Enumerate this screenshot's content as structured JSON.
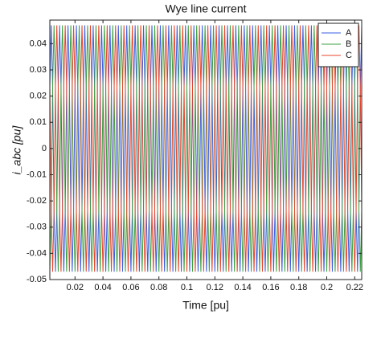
{
  "chart_data": {
    "type": "line",
    "title": "Wye line current",
    "xlabel": "Time [pu]",
    "ylabel": "i_abc [pu]",
    "xlim": [
      0.002,
      0.225
    ],
    "ylim": [
      -0.05,
      0.049
    ],
    "xticks": [
      0.02,
      0.04,
      0.06,
      0.08,
      0.1,
      0.12,
      0.14,
      0.16,
      0.18,
      0.2,
      0.22
    ],
    "yticks": [
      -0.05,
      -0.04,
      -0.03,
      -0.02,
      -0.01,
      0,
      0.01,
      0.02,
      0.03,
      0.04
    ],
    "legend": "upper right",
    "grid": false,
    "x": [
      0.002,
      0.003,
      0.004,
      0.005,
      0.006,
      0.007,
      0.008,
      0.009,
      0.01,
      0.011,
      0.012,
      0.013,
      0.014,
      0.015,
      0.016,
      0.017,
      0.018,
      0.019,
      0.02,
      0.021,
      0.022,
      0.023,
      0.024,
      0.025,
      0.026,
      0.027,
      0.028,
      0.029,
      0.03,
      0.031,
      0.032,
      0.033,
      0.034,
      0.035,
      0.036,
      0.037,
      0.038,
      0.039,
      0.04,
      0.041,
      0.042,
      0.043,
      0.044,
      0.045,
      0.046,
      0.047,
      0.048,
      0.049,
      0.05,
      0.051,
      0.052,
      0.053,
      0.054,
      0.055,
      0.056,
      0.057,
      0.058,
      0.059,
      0.06,
      0.061,
      0.062,
      0.063,
      0.064,
      0.065,
      0.066,
      0.067,
      0.068,
      0.069,
      0.07,
      0.071,
      0.072,
      0.073,
      0.074,
      0.075,
      0.076,
      0.077,
      0.078,
      0.079,
      0.08,
      0.081,
      0.082,
      0.083,
      0.084,
      0.085,
      0.086,
      0.087,
      0.088,
      0.089,
      0.09,
      0.091,
      0.092,
      0.093,
      0.094,
      0.095,
      0.096,
      0.097,
      0.098,
      0.099,
      0.1,
      0.101,
      0.102,
      0.103,
      0.104,
      0.105,
      0.106,
      0.107,
      0.108,
      0.109,
      0.11,
      0.111,
      0.112,
      0.113,
      0.114,
      0.115,
      0.116,
      0.117,
      0.118,
      0.119,
      0.12,
      0.121,
      0.122,
      0.123,
      0.124,
      0.125,
      0.126,
      0.127,
      0.128,
      0.129,
      0.13,
      0.131,
      0.132,
      0.133,
      0.134,
      0.135,
      0.136,
      0.137,
      0.138,
      0.139,
      0.14,
      0.141,
      0.142,
      0.143,
      0.144,
      0.145,
      0.146,
      0.147,
      0.148,
      0.149,
      0.15,
      0.151,
      0.152,
      0.153,
      0.154,
      0.155,
      0.156,
      0.157,
      0.158,
      0.159,
      0.16,
      0.161,
      0.162,
      0.163,
      0.164,
      0.165,
      0.166,
      0.167,
      0.168,
      0.169,
      0.17,
      0.171,
      0.172,
      0.173,
      0.174,
      0.175,
      0.176,
      0.177,
      0.178,
      0.179,
      0.18,
      0.181,
      0.182,
      0.183,
      0.184,
      0.185,
      0.186,
      0.187,
      0.188,
      0.189,
      0.19,
      0.191,
      0.192,
      0.193,
      0.194,
      0.195,
      0.196,
      0.197,
      0.198,
      0.199,
      0.2,
      0.201,
      0.202,
      0.203,
      0.204,
      0.205,
      0.206,
      0.207,
      0.208,
      0.209,
      0.21,
      0.211,
      0.212,
      0.213,
      0.214,
      0.215,
      0.216,
      0.217,
      0.218,
      0.219,
      0.22,
      0.221,
      0.222,
      0.223,
      0.224,
      0.225
    ],
    "series": [
      {
        "name": "A",
        "color": "#3a5fe0",
        "values": [
          0.0235,
          0.047,
          0.0235,
          -0.0235,
          -0.047,
          -0.0235,
          0.0235,
          0.047,
          0.0235,
          -0.0235,
          -0.047,
          -0.0235,
          0.0235,
          0.047,
          0.0235,
          -0.0235,
          -0.047,
          -0.0235,
          0.0235,
          0.047,
          0.0235,
          -0.0235,
          -0.047,
          -0.0235,
          0.0235,
          0.047,
          0.0235,
          -0.0235,
          -0.047,
          -0.0235,
          0.0235,
          0.047,
          0.0235,
          -0.0235,
          -0.047,
          -0.0235,
          0.0235,
          0.047,
          0.0235,
          -0.0235,
          -0.047,
          -0.0235,
          0.0235,
          0.047,
          0.0235,
          -0.0235,
          -0.047,
          -0.0235,
          0.0235,
          0.047,
          0.0235,
          -0.0235,
          -0.047,
          -0.0235,
          0.0235,
          0.047,
          0.0235,
          -0.0235,
          -0.047,
          -0.0235,
          0.0235,
          0.047,
          0.0235,
          -0.0235,
          -0.047,
          -0.0235,
          0.0235,
          0.047,
          0.0235,
          -0.0235,
          -0.047,
          -0.0235,
          0.0235,
          0.047,
          0.0235,
          -0.0235,
          -0.047,
          -0.0235,
          0.0235,
          0.047,
          0.0235,
          -0.0235,
          -0.047,
          -0.0235,
          0.0235,
          0.047,
          0.0235,
          -0.0235,
          -0.047,
          -0.0235,
          0.0235,
          0.047,
          0.0235,
          -0.0235,
          -0.047,
          -0.0235,
          0.0235,
          0.047,
          0.0235,
          -0.0235,
          -0.047,
          -0.0235,
          0.0235,
          0.047,
          0.0235,
          -0.0235,
          -0.047,
          -0.0235,
          0.0235,
          0.047,
          0.0235,
          -0.0235,
          -0.047,
          -0.0235,
          0.0235,
          0.047,
          0.0235,
          -0.0235,
          -0.047,
          -0.0235,
          0.0235,
          0.047,
          0.0235,
          -0.0235,
          -0.047,
          -0.0235,
          0.0235,
          0.047,
          0.0235,
          -0.0235,
          -0.047,
          -0.0235,
          0.0235,
          0.047,
          0.0235,
          -0.0235,
          -0.047,
          -0.0235,
          0.0235,
          0.047,
          0.0235,
          -0.0235,
          -0.047,
          -0.0235,
          0.0235,
          0.047,
          0.0235,
          -0.0235,
          -0.047,
          -0.0235,
          0.0235,
          0.047,
          0.0235,
          -0.0235,
          -0.047,
          -0.0235,
          0.0235,
          0.047,
          0.0235,
          -0.0235,
          -0.047,
          -0.0235,
          0.0235,
          0.047,
          0.0235,
          -0.0235,
          -0.047,
          -0.0235,
          0.0235,
          0.047,
          0.0235,
          -0.0235,
          -0.047,
          -0.0235,
          0.0235,
          0.047,
          0.0235,
          -0.0235,
          -0.047,
          -0.0235,
          0.0235,
          0.047,
          0.0235,
          -0.0235,
          -0.047,
          -0.0235,
          0.0235,
          0.047,
          0.0235,
          -0.0235,
          -0.047,
          -0.0235,
          0.0235,
          0.047,
          0.0235,
          -0.0235,
          -0.047,
          -0.0235,
          0.0235,
          0.047,
          0.0235,
          -0.0235,
          -0.047,
          -0.0235,
          0.0235,
          0.047,
          0.0235,
          -0.0235,
          -0.047,
          -0.0235,
          0.0235,
          0.047,
          0.0235,
          -0.0235,
          -0.047,
          -0.0235,
          0.0235,
          0.047,
          0.0235,
          -0.0235,
          -0.047,
          -0.0235,
          0.0235,
          0.047
        ]
      },
      {
        "name": "B",
        "color": "#3fa03f",
        "values": [
          -0.047,
          -0.0235,
          0.0235,
          0.047,
          0.0235,
          -0.0235,
          -0.047,
          -0.0235,
          0.0235,
          0.047,
          0.0235,
          -0.0235,
          -0.047,
          -0.0235,
          0.0235,
          0.047,
          0.0235,
          -0.0235,
          -0.047,
          -0.0235,
          0.0235,
          0.047,
          0.0235,
          -0.0235,
          -0.047,
          -0.0235,
          0.0235,
          0.047,
          0.0235,
          -0.0235,
          -0.047,
          -0.0235,
          0.0235,
          0.047,
          0.0235,
          -0.0235,
          -0.047,
          -0.0235,
          0.0235,
          0.047,
          0.0235,
          -0.0235,
          -0.047,
          -0.0235,
          0.0235,
          0.047,
          0.0235,
          -0.0235,
          -0.047,
          -0.0235,
          0.0235,
          0.047,
          0.0235,
          -0.0235,
          -0.047,
          -0.0235,
          0.0235,
          0.047,
          0.0235,
          -0.0235,
          -0.047,
          -0.0235,
          0.0235,
          0.047,
          0.0235,
          -0.0235,
          -0.047,
          -0.0235,
          0.0235,
          0.047,
          0.0235,
          -0.0235,
          -0.047,
          -0.0235,
          0.0235,
          0.047,
          0.0235,
          -0.0235,
          -0.047,
          -0.0235,
          0.0235,
          0.047,
          0.0235,
          -0.0235,
          -0.047,
          -0.0235,
          0.0235,
          0.047,
          0.0235,
          -0.0235,
          -0.047,
          -0.0235,
          0.0235,
          0.047,
          0.0235,
          -0.0235,
          -0.047,
          -0.0235,
          0.0235,
          0.047,
          0.0235,
          -0.0235,
          -0.047,
          -0.0235,
          0.0235,
          0.047,
          0.0235,
          -0.0235,
          -0.047,
          -0.0235,
          0.0235,
          0.047,
          0.0235,
          -0.0235,
          -0.047,
          -0.0235,
          0.0235,
          0.047,
          0.0235,
          -0.0235,
          -0.047,
          -0.0235,
          0.0235,
          0.047,
          0.0235,
          -0.0235,
          -0.047,
          -0.0235,
          0.0235,
          0.047,
          0.0235,
          -0.0235,
          -0.047,
          -0.0235,
          0.0235,
          0.047,
          0.0235,
          -0.0235,
          -0.047,
          -0.0235,
          0.0235,
          0.047,
          0.0235,
          -0.0235,
          -0.047,
          -0.0235,
          0.0235,
          0.047,
          0.0235,
          -0.0235,
          -0.047,
          -0.0235,
          0.0235,
          0.047,
          0.0235,
          -0.0235,
          -0.047,
          -0.0235,
          0.0235,
          0.047,
          0.0235,
          -0.0235,
          -0.047,
          -0.0235,
          0.0235,
          0.047,
          0.0235,
          -0.0235,
          -0.047,
          -0.0235,
          0.0235,
          0.047,
          0.0235,
          -0.0235,
          -0.047,
          -0.0235,
          0.0235,
          0.047,
          0.0235,
          -0.0235,
          -0.047,
          -0.0235,
          0.0235,
          0.047,
          0.0235,
          -0.0235,
          -0.047,
          -0.0235,
          0.0235,
          0.047,
          0.0235,
          -0.0235,
          -0.047,
          -0.0235,
          0.0235,
          0.047,
          0.0235,
          -0.0235,
          -0.047,
          -0.0235,
          0.0235,
          0.047,
          0.0235,
          -0.0235,
          -0.047,
          -0.0235,
          0.0235,
          0.047,
          0.0235,
          -0.0235,
          -0.047,
          -0.0235,
          0.0235,
          0.047,
          0.0235,
          -0.0235,
          -0.047,
          -0.0235,
          0.0235,
          0.047,
          0.0235,
          -0.0235,
          -0.047,
          -0.0235
        ]
      },
      {
        "name": "C",
        "color": "#e8452c",
        "values": [
          0.0235,
          -0.0235,
          -0.047,
          -0.0235,
          0.0235,
          0.047,
          0.0235,
          -0.0235,
          -0.047,
          -0.0235,
          0.0235,
          0.047,
          0.0235,
          -0.0235,
          -0.047,
          -0.0235,
          0.0235,
          0.047,
          0.0235,
          -0.0235,
          -0.047,
          -0.0235,
          0.0235,
          0.047,
          0.0235,
          -0.0235,
          -0.047,
          -0.0235,
          0.0235,
          0.047,
          0.0235,
          -0.0235,
          -0.047,
          -0.0235,
          0.0235,
          0.047,
          0.0235,
          -0.0235,
          -0.047,
          -0.0235,
          0.0235,
          0.047,
          0.0235,
          -0.0235,
          -0.047,
          -0.0235,
          0.0235,
          0.047,
          0.0235,
          -0.0235,
          -0.047,
          -0.0235,
          0.0235,
          0.047,
          0.0235,
          -0.0235,
          -0.047,
          -0.0235,
          0.0235,
          0.047,
          0.0235,
          -0.0235,
          -0.047,
          -0.0235,
          0.0235,
          0.047,
          0.0235,
          -0.0235,
          -0.047,
          -0.0235,
          0.0235,
          0.047,
          0.0235,
          -0.0235,
          -0.047,
          -0.0235,
          0.0235,
          0.047,
          0.0235,
          -0.0235,
          -0.047,
          -0.0235,
          0.0235,
          0.047,
          0.0235,
          -0.0235,
          -0.047,
          -0.0235,
          0.0235,
          0.047,
          0.0235,
          -0.0235,
          -0.047,
          -0.0235,
          0.0235,
          0.047,
          0.0235,
          -0.0235,
          -0.047,
          -0.0235,
          0.0235,
          0.047,
          0.0235,
          -0.0235,
          -0.047,
          -0.0235,
          0.0235,
          0.047,
          0.0235,
          -0.0235,
          -0.047,
          -0.0235,
          0.0235,
          0.047,
          0.0235,
          -0.0235,
          -0.047,
          -0.0235,
          0.0235,
          0.047,
          0.0235,
          -0.0235,
          -0.047,
          -0.0235,
          0.0235,
          0.047,
          0.0235,
          -0.0235,
          -0.047,
          -0.0235,
          0.0235,
          0.047,
          0.0235,
          -0.0235,
          -0.047,
          -0.0235,
          0.0235,
          0.047,
          0.0235,
          -0.0235,
          -0.047,
          -0.0235,
          0.0235,
          0.047,
          0.0235,
          -0.0235,
          -0.047,
          -0.0235,
          0.0235,
          0.047,
          0.0235,
          -0.0235,
          -0.047,
          -0.0235,
          0.0235,
          0.047,
          0.0235,
          -0.0235,
          -0.047,
          -0.0235,
          0.0235,
          0.047,
          0.0235,
          -0.0235,
          -0.047,
          -0.0235,
          0.0235,
          0.047,
          0.0235,
          -0.0235,
          -0.047,
          -0.0235,
          0.0235,
          0.047,
          0.0235,
          -0.0235,
          -0.047,
          -0.0235,
          0.0235,
          0.047,
          0.0235,
          -0.0235,
          -0.047,
          -0.0235,
          0.0235,
          0.047,
          0.0235,
          -0.0235,
          -0.047,
          -0.0235,
          0.0235,
          0.047,
          0.0235,
          -0.0235,
          -0.047,
          -0.0235,
          0.0235,
          0.047,
          0.0235,
          -0.0235,
          -0.047,
          -0.0235,
          0.0235,
          0.047,
          0.0235,
          -0.0235,
          -0.047,
          -0.0235,
          0.0235,
          0.047,
          0.0235,
          -0.0235,
          -0.047,
          -0.0235,
          0.0235,
          0.047,
          0.0235,
          -0.0235,
          -0.047,
          -0.0235,
          0.0235,
          0.047,
          0.0235,
          -0.0235
        ]
      }
    ]
  }
}
